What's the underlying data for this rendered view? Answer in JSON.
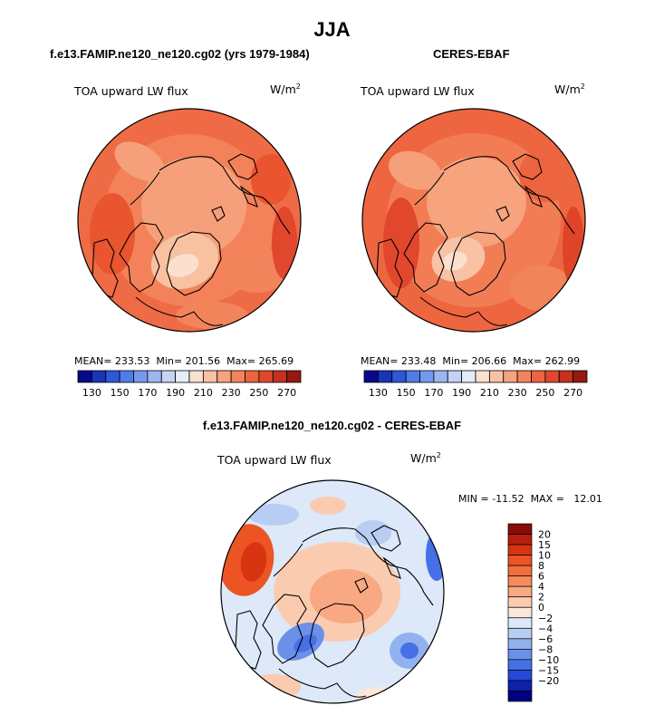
{
  "figure": {
    "title": "JJA",
    "variable_label": "TOA upward LW flux",
    "units_base": "W/m",
    "units_exp": "2"
  },
  "chart_data": [
    {
      "type": "heatmap",
      "projection": "north polar stereographic",
      "title": "f.e13.FAMIP.ne120_ne120.cg02 (yrs 1979-1984)",
      "variable": "TOA upward LW flux",
      "units": "W/m2",
      "stats": {
        "mean_label": "MEAN=",
        "mean": "233.53",
        "min_label": "Min=",
        "min": "201.56",
        "max_label": "Max=",
        "max": "265.69"
      },
      "colorbar": {
        "levels": [
          130,
          140,
          150,
          160,
          170,
          180,
          190,
          200,
          210,
          220,
          230,
          240,
          250,
          260,
          270
        ],
        "tick_labels": [
          "130",
          "150",
          "170",
          "190",
          "210",
          "230",
          "250",
          "270"
        ],
        "colors": [
          "#08088c",
          "#1a34b8",
          "#2f58d8",
          "#4e7de9",
          "#7599ee",
          "#9db5f1",
          "#c3d3f4",
          "#e4ecf8",
          "#fbe0cf",
          "#f9c2a4",
          "#f6a37e",
          "#f2845c",
          "#ec6440",
          "#e0472c",
          "#c5301f",
          "#961a10"
        ]
      }
    },
    {
      "type": "heatmap",
      "projection": "north polar stereographic",
      "title": "CERES-EBAF",
      "variable": "TOA upward LW flux",
      "units": "W/m2",
      "stats": {
        "mean_label": "MEAN=",
        "mean": "233.48",
        "min_label": "Min=",
        "min": "206.66",
        "max_label": "Max=",
        "max": "262.99"
      },
      "colorbar": {
        "levels": [
          130,
          140,
          150,
          160,
          170,
          180,
          190,
          200,
          210,
          220,
          230,
          240,
          250,
          260,
          270
        ],
        "tick_labels": [
          "130",
          "150",
          "170",
          "190",
          "210",
          "230",
          "250",
          "270"
        ],
        "colors": [
          "#08088c",
          "#1a34b8",
          "#2f58d8",
          "#4e7de9",
          "#7599ee",
          "#9db5f1",
          "#c3d3f4",
          "#e4ecf8",
          "#fbe0cf",
          "#f9c2a4",
          "#f6a37e",
          "#f2845c",
          "#ec6440",
          "#e0472c",
          "#c5301f",
          "#961a10"
        ]
      }
    },
    {
      "type": "heatmap",
      "projection": "north polar stereographic",
      "title": "f.e13.FAMIP.ne120_ne120.cg02 - CERES-EBAF",
      "variable": "TOA upward LW flux",
      "units": "W/m2",
      "stats": {
        "min_label": "MIN =",
        "min": "-11.52",
        "max_label": "MAX =",
        "max": "12.01"
      },
      "colorbar": {
        "orientation": "vertical",
        "levels": [
          20,
          15,
          10,
          8,
          6,
          4,
          2,
          0,
          -2,
          -4,
          -6,
          -8,
          -10,
          -15,
          -20
        ],
        "tick_labels": [
          "20",
          "15",
          "10",
          "8",
          "6",
          "4",
          "2",
          "0",
          "−2",
          "−4",
          "−6",
          "−8",
          "−10",
          "−15",
          "−20"
        ],
        "colors_top_to_bottom": [
          "#8b0a0a",
          "#b81e0e",
          "#d83412",
          "#ec5424",
          "#f2703e",
          "#f58a5e",
          "#f8a882",
          "#fbcbb0",
          "#fae8dc",
          "#dde8f8",
          "#b8cdf3",
          "#92b1ef",
          "#6a90ea",
          "#4670e6",
          "#2548d8",
          "#1020a8",
          "#000080"
        ]
      }
    }
  ]
}
